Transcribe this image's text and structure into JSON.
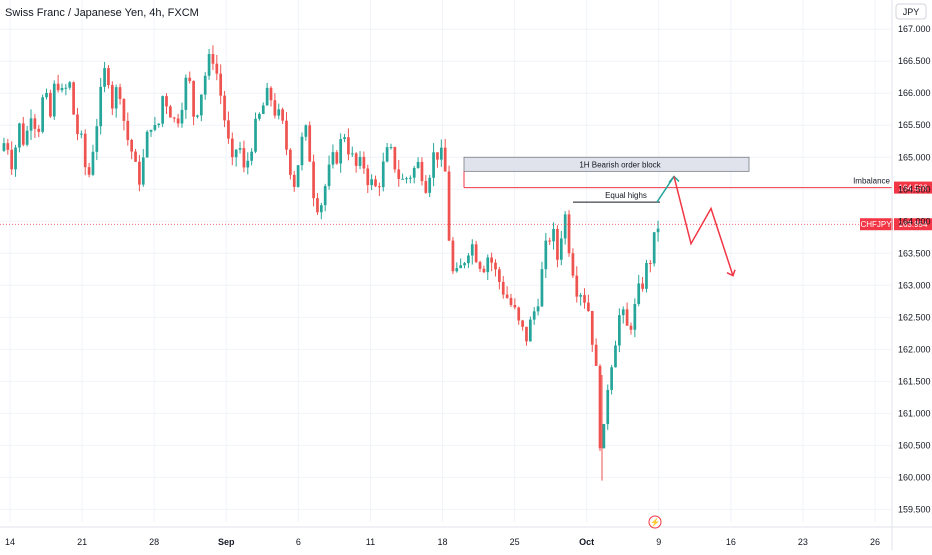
{
  "header": {
    "symbol_title": "Swiss Franc / Japanese Yen, 4h, FXCM"
  },
  "colors": {
    "up": "#26a69a",
    "down": "#ef5350",
    "accent_red": "#f23645",
    "grid": "#f0f3fa",
    "axis_text": "#131722",
    "order_block_fill": "#e0e3eb",
    "order_block_stroke": "#787b86"
  },
  "chart_data": {
    "type": "candlestick",
    "currency": "JPY",
    "y_ticks": [
      "159.500",
      "160.000",
      "160.500",
      "161.000",
      "161.500",
      "162.000",
      "162.500",
      "163.000",
      "163.500",
      "164.000",
      "164.500",
      "165.000",
      "165.500",
      "166.000",
      "166.500",
      "167.000"
    ],
    "ylim": [
      159.35,
      167.3
    ],
    "x_tick_labels": [
      "14",
      "21",
      "28",
      "Sep",
      "6",
      "11",
      "18",
      "25",
      "Oct",
      "9",
      "16",
      "23",
      "26"
    ],
    "grid": true,
    "last_price": {
      "label": "CHFJPY",
      "value": "163.954"
    },
    "imbalance_level": {
      "label": "Imbalance",
      "value": "164.526"
    },
    "order_block": {
      "label": "1H Bearish order block",
      "low": 164.78,
      "high": 165.0
    },
    "equal_highs": {
      "label": "Equal highs",
      "level": 164.3
    },
    "projection_path": [
      164.3,
      164.7,
      163.65,
      164.2,
      163.15
    ],
    "price_path": [
      165.1,
      165.3,
      164.9,
      165.5,
      165.2,
      165.8,
      165.4,
      166.0,
      165.6,
      166.3,
      165.9,
      166.2,
      165.5,
      165.2,
      164.6,
      165.3,
      165.9,
      166.5,
      165.8,
      166.2,
      165.4,
      165.1,
      164.6,
      165.0,
      165.6,
      165.3,
      166.0,
      165.8,
      165.5,
      165.9,
      166.3,
      165.6,
      166.0,
      166.4,
      166.6,
      166.1,
      165.5,
      164.8,
      165.3,
      164.7,
      165.2,
      165.5,
      165.8,
      166.0,
      165.7,
      165.5,
      165.0,
      164.6,
      165.2,
      165.4,
      164.5,
      164.2,
      164.6,
      164.9,
      165.1,
      165.4,
      165.0,
      164.8,
      164.9,
      164.6,
      164.5,
      164.8,
      165.1,
      164.9,
      164.6,
      164.7,
      164.8,
      164.9,
      164.6,
      165.0,
      165.1,
      164.8,
      163.2,
      163.1,
      163.4,
      163.7,
      163.5,
      163.3,
      163.5,
      163.2,
      163.0,
      162.8,
      162.6,
      162.3,
      162.2,
      162.5,
      162.9,
      163.5,
      163.9,
      163.4,
      164.2,
      163.5,
      163.0,
      162.9,
      162.6,
      161.8,
      160.2,
      161.5,
      162.1,
      162.6,
      162.3,
      162.5,
      162.9,
      163.2,
      163.5,
      163.95
    ]
  }
}
